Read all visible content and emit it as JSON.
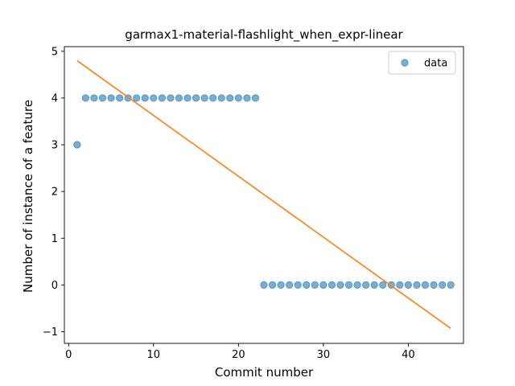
{
  "chart_data": {
    "type": "scatter",
    "title": "garmax1-material-flashlight_when_expr-linear",
    "xlabel": "Commit number",
    "ylabel": "Number of instance of a feature",
    "xlim": [
      -0.5,
      46.5
    ],
    "ylim": [
      -1.25,
      5.1
    ],
    "xticks": [
      0,
      10,
      20,
      30,
      40
    ],
    "yticks": [
      -1,
      0,
      1,
      2,
      3,
      4,
      5
    ],
    "legend": {
      "position": "top-right",
      "entries": [
        "data"
      ]
    },
    "grid": false,
    "series": [
      {
        "name": "data",
        "kind": "scatter",
        "color": "#1f77b4",
        "x": [
          1,
          2,
          3,
          4,
          5,
          6,
          7,
          8,
          9,
          10,
          11,
          12,
          13,
          14,
          15,
          16,
          17,
          18,
          19,
          20,
          21,
          22,
          23,
          24,
          25,
          26,
          27,
          28,
          29,
          30,
          31,
          32,
          33,
          34,
          35,
          36,
          37,
          38,
          39,
          40,
          41,
          42,
          43,
          44,
          45
        ],
        "y": [
          3,
          4,
          4,
          4,
          4,
          4,
          4,
          4,
          4,
          4,
          4,
          4,
          4,
          4,
          4,
          4,
          4,
          4,
          4,
          4,
          4,
          4,
          0,
          0,
          0,
          0,
          0,
          0,
          0,
          0,
          0,
          0,
          0,
          0,
          0,
          0,
          0,
          0,
          0,
          0,
          0,
          0,
          0,
          0,
          0
        ]
      },
      {
        "kind": "line",
        "color": "#ff7f0e",
        "x": [
          1,
          45
        ],
        "y": [
          4.8,
          -0.93
        ]
      }
    ]
  }
}
